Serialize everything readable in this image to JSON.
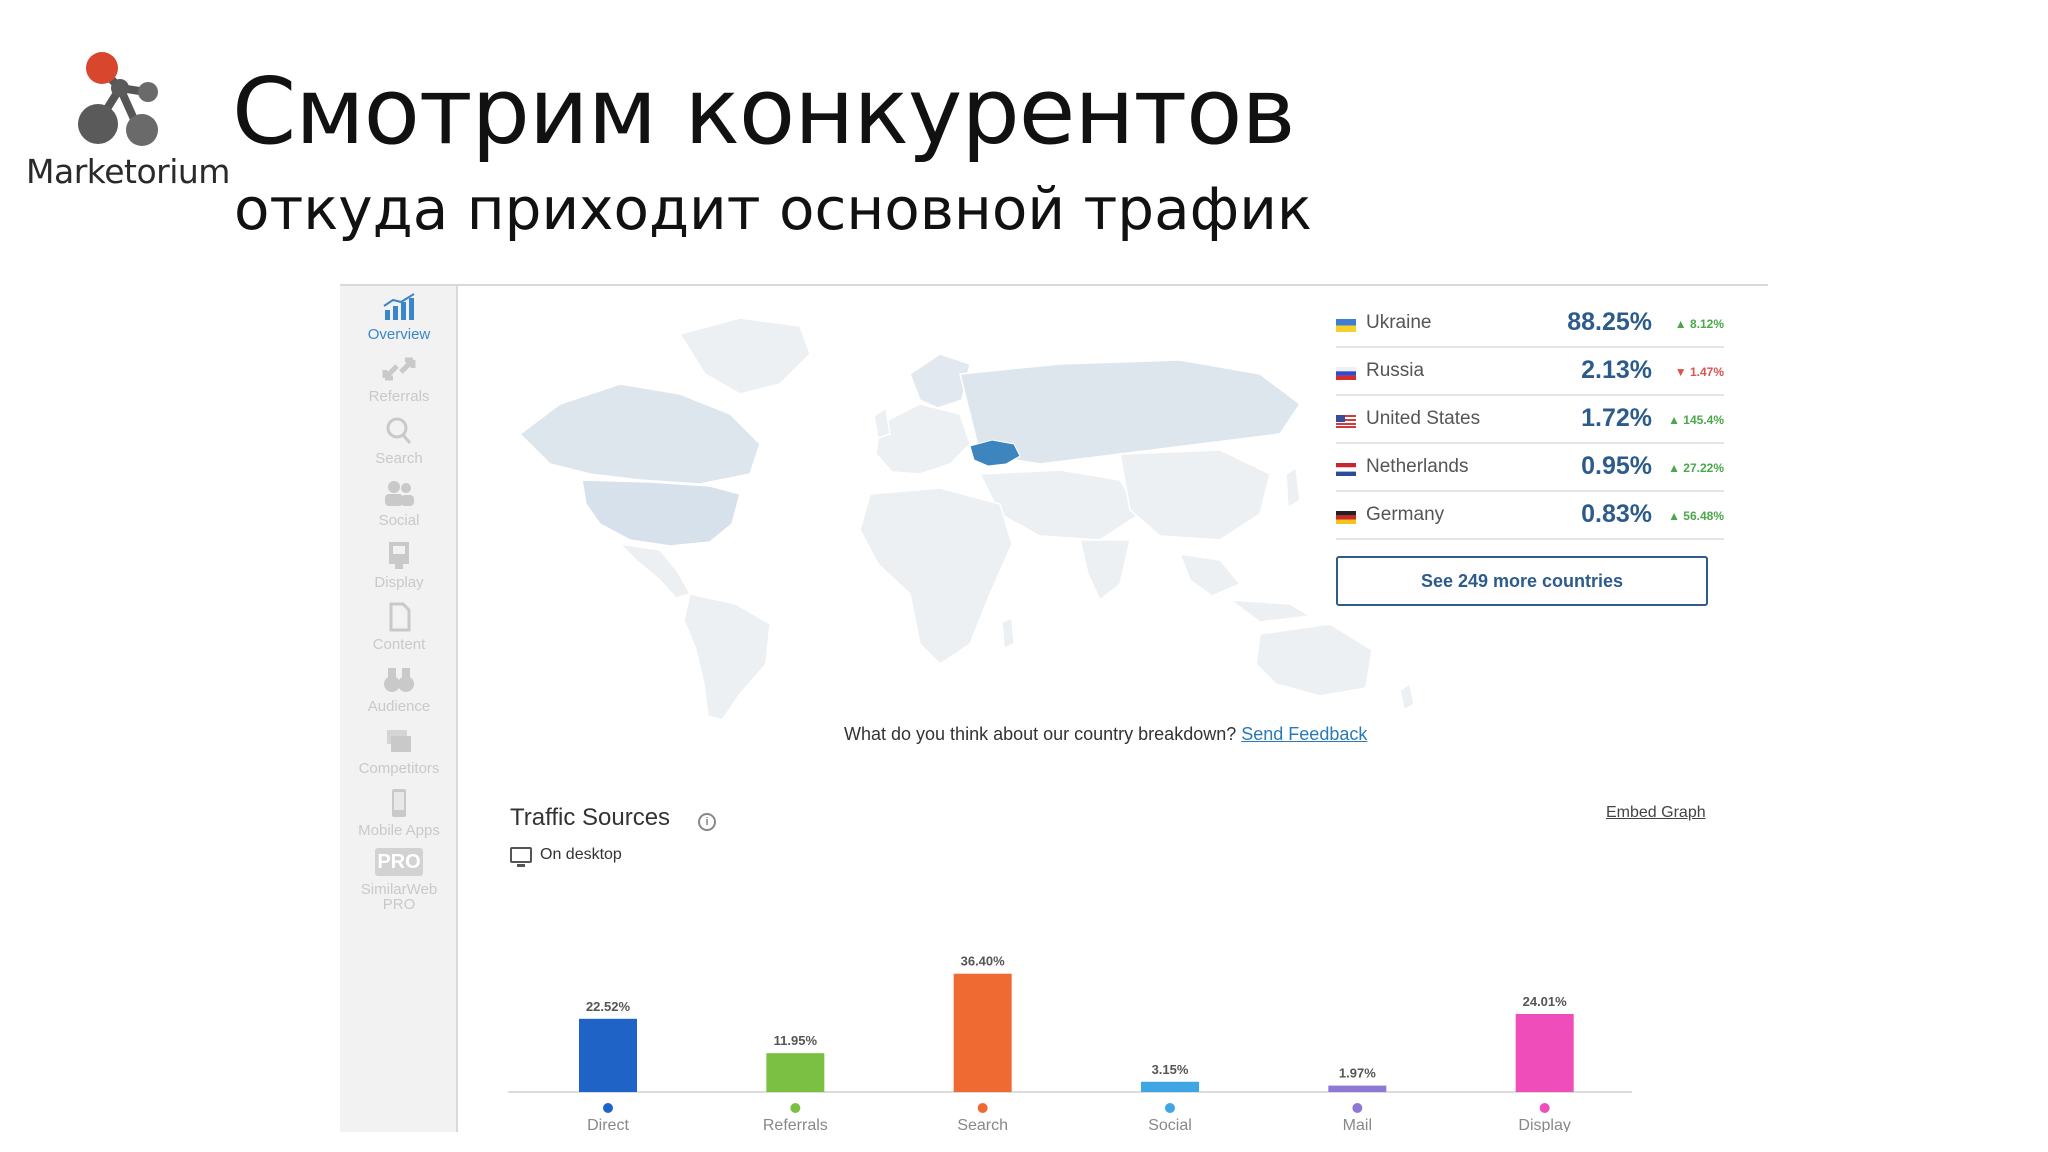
{
  "slide": {
    "title": "Смотрим конкурентов",
    "subtitle": "откуда приходит основной трафик",
    "logo_text": "Marketorium"
  },
  "colors": {
    "accent": "#2d5b8c",
    "ukraine_fill": "#3d85bf",
    "map_land": "#e8ecf0",
    "up": "#4aa84a",
    "down": "#d9534f"
  },
  "sidebar": {
    "items": [
      {
        "label": "Overview",
        "icon": "chart-icon",
        "active": true
      },
      {
        "label": "Referrals",
        "icon": "arrows-icon"
      },
      {
        "label": "Search",
        "icon": "magnifier-icon"
      },
      {
        "label": "Social",
        "icon": "people-icon"
      },
      {
        "label": "Display",
        "icon": "display-icon"
      },
      {
        "label": "Content",
        "icon": "document-icon"
      },
      {
        "label": "Audience",
        "icon": "binoculars-icon"
      },
      {
        "label": "Competitors",
        "icon": "stack-icon"
      },
      {
        "label": "Mobile Apps",
        "icon": "phone-icon"
      }
    ],
    "pro": {
      "badge": "PRO",
      "label_line1": "SimilarWeb",
      "label_line2": "PRO"
    }
  },
  "countries": [
    {
      "name": "Ukraine",
      "share": "88.25%",
      "change": "8.12%",
      "trend": "up",
      "flag": [
        "#3e7dd4",
        "#f7d12a"
      ]
    },
    {
      "name": "Russia",
      "share": "2.13%",
      "change": "1.47%",
      "trend": "down",
      "flag": [
        "#ffffff",
        "#2b4bd1",
        "#d62b2b"
      ]
    },
    {
      "name": "United States",
      "share": "1.72%",
      "change": "145.4%",
      "trend": "up",
      "flag": [
        "#3c4a9c",
        "#d23b3b",
        "#ffffff"
      ]
    },
    {
      "name": "Netherlands",
      "share": "0.95%",
      "change": "27.22%",
      "trend": "up",
      "flag": [
        "#c8262c",
        "#ffffff",
        "#2b4a9a"
      ]
    },
    {
      "name": "Germany",
      "share": "0.83%",
      "change": "56.48%",
      "trend": "up",
      "flag": [
        "#222222",
        "#d02727",
        "#f2c318"
      ]
    }
  ],
  "more_countries_button": "See 249 more countries",
  "feedback": {
    "question": "What do you think about our country breakdown?",
    "link": "Send Feedback"
  },
  "traffic": {
    "title": "Traffic Sources",
    "embed_link": "Embed Graph",
    "device": "On desktop"
  },
  "chart_data": {
    "type": "bar",
    "title": "Traffic Sources",
    "categories": [
      "Direct",
      "Referrals",
      "Search",
      "Social",
      "Mail",
      "Display"
    ],
    "values": [
      22.52,
      11.95,
      36.4,
      3.15,
      1.97,
      24.01
    ],
    "labels": [
      "22.52%",
      "11.95%",
      "36.40%",
      "3.15%",
      "1.97%",
      "24.01%"
    ],
    "colors": [
      "#1f63c6",
      "#7cc043",
      "#ef6a32",
      "#3ea6e3",
      "#8e78d6",
      "#ef4db9"
    ],
    "ylim": [
      0,
      40
    ],
    "grid": false,
    "legend": "none"
  }
}
